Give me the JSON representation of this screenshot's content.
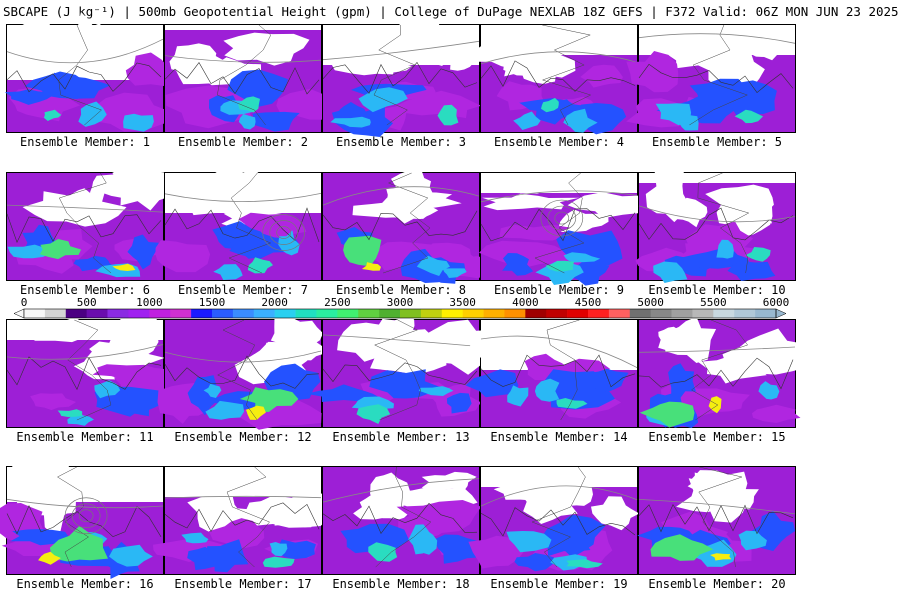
{
  "header": {
    "title": "SBCAPE (J kg⁻¹) | 500mb Geopotential Height (gpm) | College of DuPage NEXLAB 18Z GEFS | F372 Valid: 06Z MON JUN 23 2025"
  },
  "colorbar": {
    "ticks": [
      "0",
      "500",
      "1000",
      "1500",
      "2000",
      "2500",
      "3000",
      "3500",
      "4000",
      "4500",
      "5000",
      "5500",
      "6000"
    ],
    "min": 0,
    "max": 6000,
    "colors": [
      "#f7f7f7",
      "#d4d4d4",
      "#4b0082",
      "#6a0dad",
      "#8a2be2",
      "#a020f0",
      "#c020e0",
      "#d030d0",
      "#1a1aff",
      "#2a5cff",
      "#3a8cff",
      "#3ab0ff",
      "#2ad0f0",
      "#20e0c0",
      "#2aeea0",
      "#40f070",
      "#60d040",
      "#50b030",
      "#80c020",
      "#c0d010",
      "#fff000",
      "#ffd000",
      "#ffb000",
      "#ff9000",
      "#a00000",
      "#c00000",
      "#e00000",
      "#ff2020",
      "#ff6060",
      "#707070",
      "#888888",
      "#a0a0a0",
      "#b8b8b8",
      "#c8d8e0",
      "#b0c8d8",
      "#98b8d0"
    ]
  },
  "panels": [
    {
      "label": "Ensemble Member: 1"
    },
    {
      "label": "Ensemble Member: 2"
    },
    {
      "label": "Ensemble Member: 3"
    },
    {
      "label": "Ensemble Member: 4"
    },
    {
      "label": "Ensemble Member: 5"
    },
    {
      "label": "Ensemble Member: 6"
    },
    {
      "label": "Ensemble Member: 7"
    },
    {
      "label": "Ensemble Member: 8"
    },
    {
      "label": "Ensemble Member: 9"
    },
    {
      "label": "Ensemble Member: 10"
    },
    {
      "label": "Ensemble Member: 11"
    },
    {
      "label": "Ensemble Member: 12"
    },
    {
      "label": "Ensemble Member: 13"
    },
    {
      "label": "Ensemble Member: 14"
    },
    {
      "label": "Ensemble Member: 15"
    },
    {
      "label": "Ensemble Member: 16"
    },
    {
      "label": "Ensemble Member: 17"
    },
    {
      "label": "Ensemble Member: 18"
    },
    {
      "label": "Ensemble Member: 19"
    },
    {
      "label": "Ensemble Member: 20"
    }
  ]
}
